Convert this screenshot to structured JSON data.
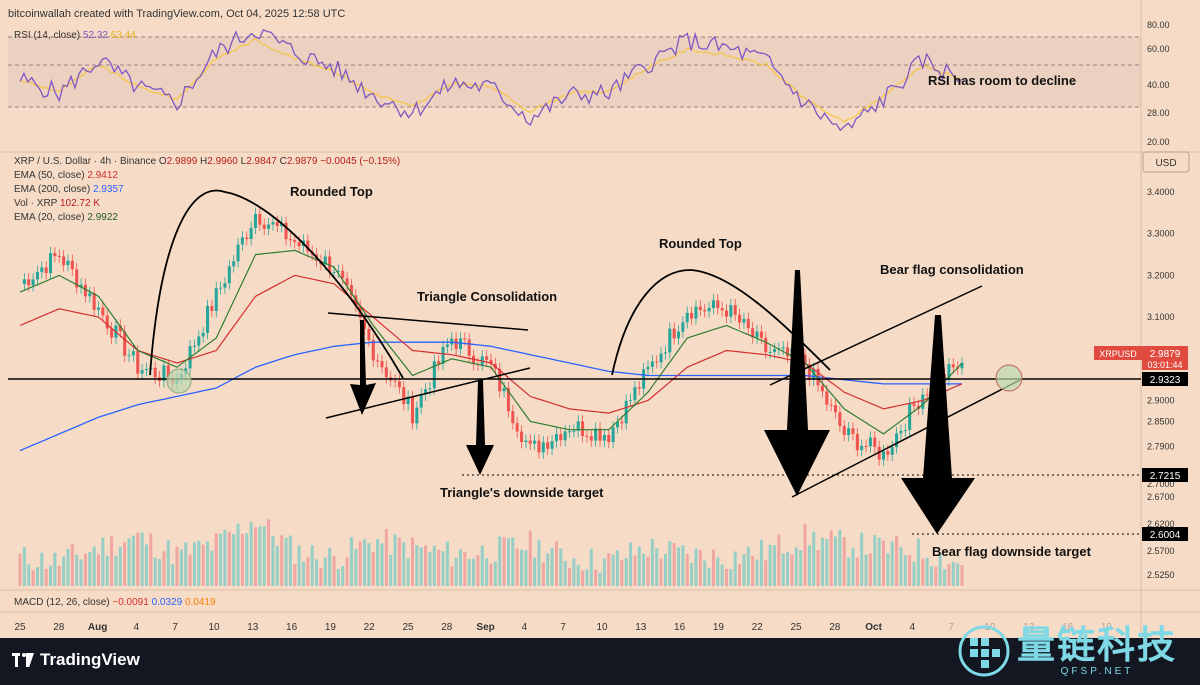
{
  "header": {
    "credit": "bitcoinwallah created with TradingView.com, Oct 04, 2025 12:58 UTC"
  },
  "rsi": {
    "label": "RSI (14, close)",
    "value": "52.32",
    "ma_value": "63.44",
    "ticks": [
      "80.00",
      "60.00",
      "40.00",
      "28.00",
      "20.00"
    ],
    "annotation": "RSI has room to decline",
    "color": "#7e57c2",
    "ma_color": "#f5c542"
  },
  "legend": {
    "symbol": "XRP / U.S. Dollar · 4h · Binance",
    "ohlc": [
      {
        "k": "O",
        "v": "2.9899"
      },
      {
        "k": "H",
        "v": "2.9960"
      },
      {
        "k": "L",
        "v": "2.9847"
      },
      {
        "k": "C",
        "v": "2.9879"
      }
    ],
    "change": "−0.0045 (−0.15%)",
    "ema50": {
      "label": "EMA (50, close)",
      "value": "2.9412",
      "color": "#d32f2f"
    },
    "ema200": {
      "label": "EMA (200, close)",
      "value": "2.9357",
      "color": "#2962ff"
    },
    "vol": {
      "label": "Vol · XRP",
      "value": "102.72 K"
    },
    "ema20": {
      "label": "EMA (20, close)",
      "value": "2.9922",
      "color": "#1b5e20"
    }
  },
  "axis": {
    "currency": "USD",
    "price_ticks": [
      "3.4000",
      "3.3000",
      "3.2000",
      "3.1000",
      "3.0000",
      "2.9000",
      "2.8500",
      "2.7900",
      "2.7000",
      "2.6700",
      "2.6200",
      "2.5700",
      "2.5250"
    ],
    "labels": {
      "symbol_tag": "XRPUSD",
      "last_price": "2.9879",
      "countdown": "03:01:44",
      "support": "2.9323",
      "target1": "2.7215",
      "target2": "2.6004"
    },
    "x_ticks": [
      "25",
      "28",
      "Aug",
      "4",
      "7",
      "10",
      "13",
      "16",
      "19",
      "22",
      "25",
      "28",
      "Sep",
      "4",
      "7",
      "10",
      "13",
      "16",
      "19",
      "22",
      "25",
      "28",
      "Oct",
      "4",
      "7",
      "10",
      "13",
      "16",
      "19"
    ]
  },
  "annotations": {
    "rounded_top_1": "Rounded Top",
    "triangle": "Triangle Consolidation",
    "triangle_target": "Triangle's downside target",
    "rounded_top_2": "Rounded Top",
    "bear_flag": "Bear flag consolidation",
    "bear_flag_target": "Bear flag downside target"
  },
  "macd": {
    "label": "MACD (12, 26, close)",
    "v1": "−0.0091",
    "v2": "0.0329",
    "v3": "0.0419",
    "c1": "#d32f2f",
    "c2": "#2962ff",
    "c3": "#f57c00"
  },
  "footer": {
    "brand": "TradingView"
  },
  "watermark": {
    "cn": "量链科技",
    "en": "QFSP.NET"
  },
  "chart_data": {
    "type": "line",
    "title": "",
    "x": [
      "Jul 24",
      "Jul 27",
      "Jul 30",
      "Aug 02",
      "Aug 05",
      "Aug 08",
      "Aug 11",
      "Aug 14",
      "Aug 17",
      "Aug 20",
      "Aug 23",
      "Aug 26",
      "Aug 29",
      "Sep 01",
      "Sep 04",
      "Sep 07",
      "Sep 10",
      "Sep 13",
      "Sep 16",
      "Sep 19",
      "Sep 22",
      "Sep 25",
      "Sep 28",
      "Oct 01",
      "Oct 04"
    ],
    "series": [
      {
        "name": "XRP / U.S. Dollar",
        "values": [
          3.18,
          3.25,
          3.12,
          2.98,
          2.95,
          3.15,
          3.35,
          3.28,
          3.22,
          3.02,
          2.87,
          3.05,
          2.98,
          2.78,
          2.84,
          2.82,
          2.97,
          3.12,
          3.12,
          3.02,
          2.99,
          2.82,
          2.77,
          2.92,
          2.99
        ]
      },
      {
        "name": "EMA (20, close)",
        "values": [
          3.16,
          3.2,
          3.15,
          3.02,
          2.98,
          3.05,
          3.25,
          3.26,
          3.22,
          3.08,
          2.96,
          3.0,
          2.98,
          2.85,
          2.83,
          2.83,
          2.92,
          3.05,
          3.08,
          3.04,
          2.99,
          2.88,
          2.82,
          2.89,
          2.99
        ]
      },
      {
        "name": "EMA (50, close)",
        "values": [
          3.08,
          3.12,
          3.1,
          3.02,
          2.99,
          3.02,
          3.15,
          3.2,
          3.18,
          3.1,
          3.02,
          3.01,
          2.99,
          2.91,
          2.88,
          2.87,
          2.9,
          2.98,
          3.02,
          3.01,
          2.99,
          2.92,
          2.88,
          2.9,
          2.94
        ]
      },
      {
        "name": "EMA (200, close)",
        "values": [
          2.78,
          2.82,
          2.86,
          2.89,
          2.91,
          2.93,
          2.98,
          3.01,
          3.03,
          3.04,
          3.04,
          3.04,
          3.03,
          3.01,
          2.99,
          2.97,
          2.96,
          2.96,
          2.96,
          2.96,
          2.96,
          2.95,
          2.94,
          2.94,
          2.94
        ]
      }
    ],
    "ylim": [
      2.5,
      3.45
    ],
    "horizontal_levels": [
      2.9323,
      2.7215,
      2.6004
    ],
    "rsi_values": [
      52,
      45,
      62,
      48,
      40,
      66,
      78,
      66,
      58,
      44,
      35,
      50,
      48,
      32,
      44,
      45,
      60,
      72,
      68,
      62,
      40,
      25,
      42,
      62,
      52
    ],
    "volume_values": [
      40,
      35,
      55,
      70,
      45,
      60,
      95,
      50,
      40,
      65,
      55,
      45,
      50,
      60,
      40,
      35,
      55,
      45,
      40,
      50,
      70,
      60,
      55,
      50,
      30
    ],
    "grid": false,
    "legend_position": "top-left"
  }
}
